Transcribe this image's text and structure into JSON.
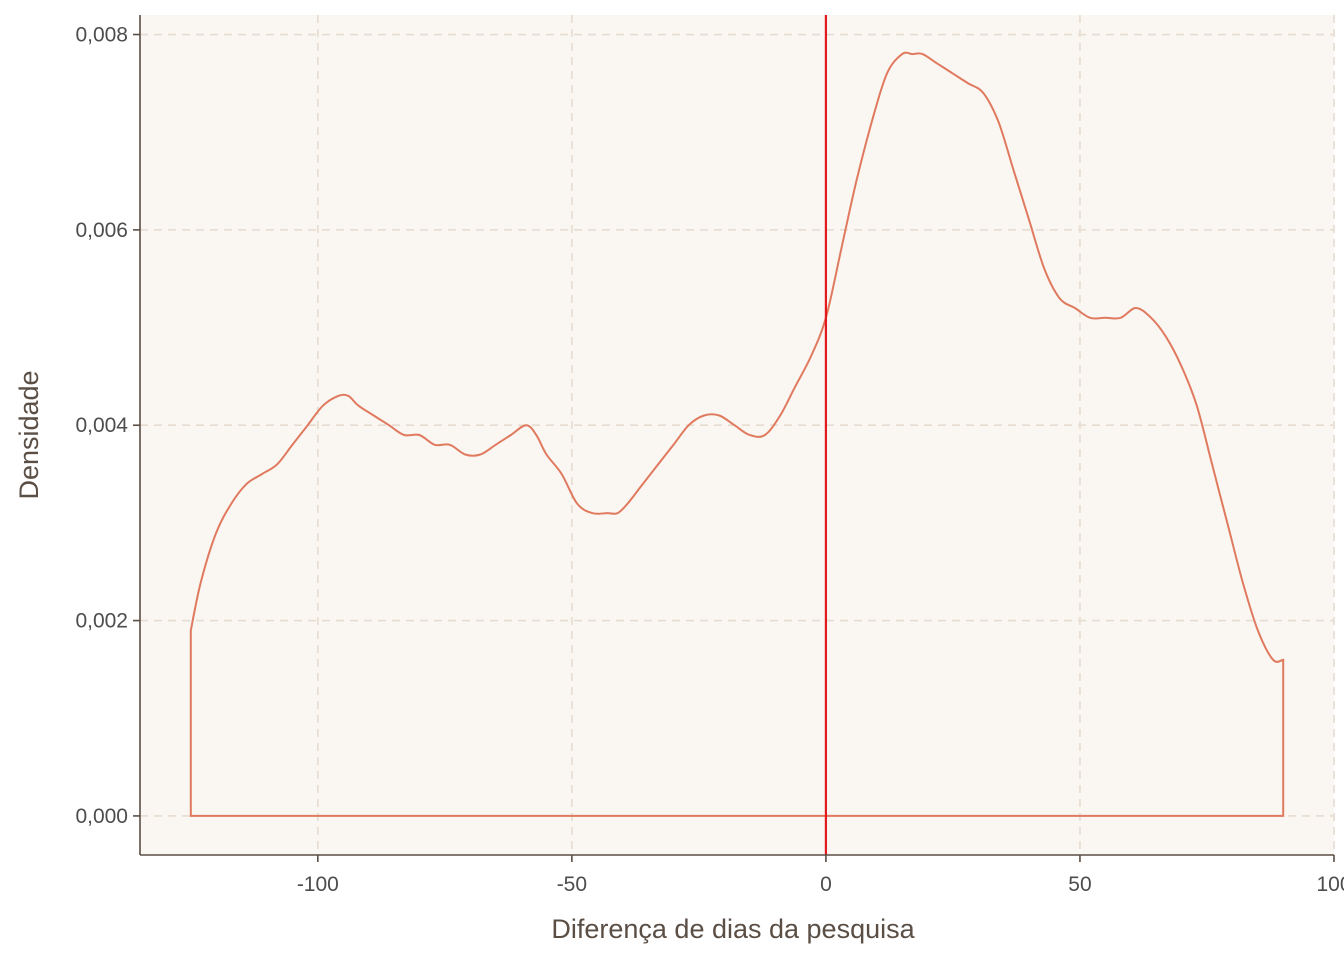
{
  "chart_data": {
    "type": "area",
    "title": "",
    "xlabel": "Diferença de dias da pesquisa",
    "ylabel": "Densidade",
    "xlim": [
      -135,
      100
    ],
    "ylim": [
      -0.0004,
      0.0082
    ],
    "xticks": [
      -100,
      -50,
      0,
      50,
      100
    ],
    "xtick_labels": [
      "-100",
      "-50",
      "0",
      "50",
      "100"
    ],
    "yticks": [
      0,
      0.002,
      0.004,
      0.006,
      0.008
    ],
    "ytick_labels": [
      "0,000",
      "0,002",
      "0,004",
      "0,006",
      "0,008"
    ],
    "grid": true,
    "legend": "none",
    "vline": {
      "x": 0,
      "color": "#e31a1c"
    },
    "series": [
      {
        "color": "#e07a5f",
        "x": [
          -125,
          -123,
          -120,
          -117,
          -114,
          -111,
          -108,
          -105,
          -102,
          -99,
          -96,
          -94,
          -92,
          -89,
          -86,
          -83,
          -80,
          -77,
          -74,
          -71,
          -68,
          -65,
          -62,
          -59,
          -57,
          -55,
          -52,
          -49,
          -46,
          -43,
          -41,
          -39,
          -36,
          -33,
          -30,
          -27,
          -24,
          -21,
          -18,
          -15,
          -12,
          -9,
          -6,
          -3,
          0,
          3,
          6,
          9,
          12,
          15,
          17,
          19,
          22,
          25,
          28,
          31,
          34,
          37,
          40,
          43,
          46,
          49,
          52,
          55,
          58,
          61,
          64,
          67,
          70,
          73,
          76,
          79,
          82,
          85,
          88,
          90
        ],
        "y": [
          0.0019,
          0.0024,
          0.0029,
          0.0032,
          0.0034,
          0.0035,
          0.0036,
          0.0038,
          0.004,
          0.0042,
          0.0043,
          0.0043,
          0.0042,
          0.0041,
          0.004,
          0.0039,
          0.0039,
          0.0038,
          0.0038,
          0.0037,
          0.0037,
          0.0038,
          0.0039,
          0.004,
          0.0039,
          0.0037,
          0.0035,
          0.0032,
          0.0031,
          0.0031,
          0.0031,
          0.0032,
          0.0034,
          0.0036,
          0.0038,
          0.004,
          0.0041,
          0.0041,
          0.004,
          0.0039,
          0.0039,
          0.0041,
          0.0044,
          0.0047,
          0.0051,
          0.0058,
          0.0065,
          0.0071,
          0.0076,
          0.0078,
          0.0078,
          0.0078,
          0.0077,
          0.0076,
          0.0075,
          0.0074,
          0.0071,
          0.0066,
          0.0061,
          0.0056,
          0.0053,
          0.0052,
          0.0051,
          0.0051,
          0.0051,
          0.0052,
          0.0051,
          0.0049,
          0.0046,
          0.0042,
          0.0036,
          0.003,
          0.0024,
          0.0019,
          0.0016,
          0.0016
        ]
      }
    ]
  }
}
